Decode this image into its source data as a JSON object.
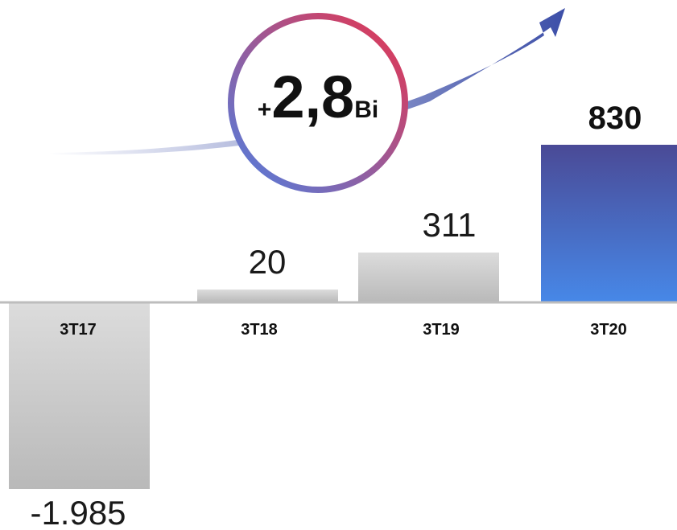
{
  "chart_data": {
    "type": "bar",
    "categories": [
      "3T17",
      "3T18",
      "3T19",
      "3T20"
    ],
    "values": [
      -1985,
      20,
      311,
      830
    ],
    "value_labels": [
      "-1.985",
      "20",
      "311",
      "830"
    ],
    "highlight_index": 3,
    "colors": {
      "neutral_top": "#dcdcdc",
      "neutral_bottom": "#b9b9b9",
      "highlight_top": "#4a4a96",
      "highlight_bottom": "#4788e8",
      "axis": "#bdbdbd",
      "badge_ring_start": "#e8344e",
      "badge_ring_end": "#4f7fe0",
      "arrow": "#3d4fa8"
    }
  },
  "badge": {
    "prefix": "+",
    "value": "2,8",
    "suffix": "Bi"
  }
}
